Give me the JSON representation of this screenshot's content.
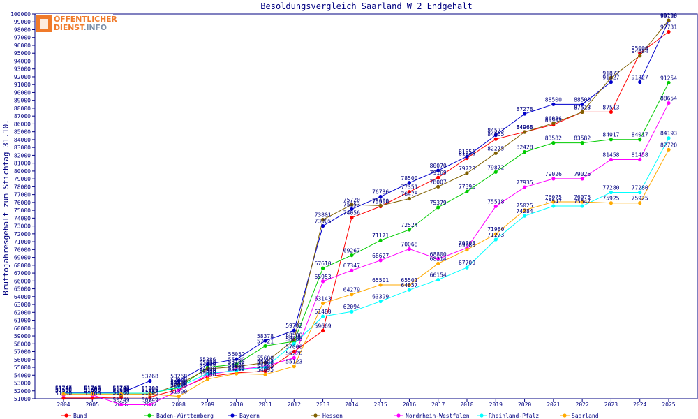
{
  "logo": {
    "line1": "ÖFFENTLICHER",
    "line2_a": "DIENST",
    "line2_b": ".INFO"
  },
  "chart_data": {
    "type": "line",
    "title": "Besoldungsvergleich Saarland W 2 Endgehalt",
    "xlabel": "",
    "ylabel": "Bruttojahresgehalt zum Stichtag 31.10.",
    "x": [
      "2004",
      "2005",
      "2006",
      "2007",
      "2008",
      "2009",
      "2010",
      "2011",
      "2012",
      "2013",
      "2014",
      "2015",
      "2016",
      "2017",
      "2018",
      "2019",
      "2020",
      "2021",
      "2022",
      "2023",
      "2024",
      "2025"
    ],
    "ylim": [
      51000,
      100000
    ],
    "ytick_step": 1000,
    "grid": false,
    "legend_position": "bottom",
    "series": [
      {
        "name": "Bund",
        "color": "#ff0000",
        "values": [
          51100,
          51100,
          51200,
          51200,
          52200,
          53800,
          54300,
          54500,
          57000,
          59669,
          74056,
          75500,
          77351,
          79169,
          81636,
          84065,
          84968,
          85901,
          87513,
          87513,
          95000,
          97731
        ]
      },
      {
        "name": "Baden-Württemberg",
        "color": "#00cc00",
        "values": [
          51700,
          51700,
          51700,
          51700,
          52400,
          55000,
          55400,
          57721,
          58300,
          67610,
          69267,
          71171,
          72524,
          75379,
          77396,
          79872,
          82428,
          83582,
          83582,
          84017,
          84017,
          91254
        ]
      },
      {
        "name": "Bayern",
        "color": "#0000cc",
        "values": [
          51747,
          51747,
          51747,
          53268,
          53268,
          55386,
          56052,
          58378,
          59702,
          73005,
          75153,
          76736,
          78500,
          80070,
          81851,
          84573,
          87278,
          88500,
          88500,
          91327,
          91327,
          99125
        ]
      },
      {
        "name": "Hessen",
        "color": "#806000",
        "values": [
          51500,
          51500,
          51500,
          51526,
          52800,
          54800,
          55100,
          55600,
          58500,
          73801,
          75720,
          75600,
          76478,
          78007,
          79723,
          82275,
          84968,
          86086,
          87513,
          91872,
          94684,
          99200
        ]
      },
      {
        "name": "Nordrhein-Westfalen",
        "color": "#ff00ff",
        "values": [
          51500,
          51500,
          50249,
          50249,
          52095,
          54000,
          54700,
          55123,
          56220,
          65953,
          67347,
          68627,
          70068,
          68800,
          70208,
          75518,
          77935,
          79026,
          79026,
          81458,
          81458,
          88654
        ]
      },
      {
        "name": "Rheinland-Pfalz",
        "color": "#00ffff",
        "values": [
          51700,
          51700,
          51700,
          51700,
          52500,
          54200,
          54600,
          55000,
          58000,
          61480,
          62094,
          63399,
          64857,
          66154,
          67709,
          71273,
          74284,
          75547,
          75547,
          77280,
          77280,
          84193
        ]
      },
      {
        "name": "Saarland",
        "color": "#ffaa00",
        "values": [
          51600,
          51600,
          51600,
          51600,
          51300,
          53500,
          54200,
          54095,
          55123,
          63143,
          64279,
          65501,
          65501,
          68214,
          69980,
          71980,
          75025,
          76075,
          76075,
          75925,
          75925,
          82720
        ]
      }
    ]
  }
}
